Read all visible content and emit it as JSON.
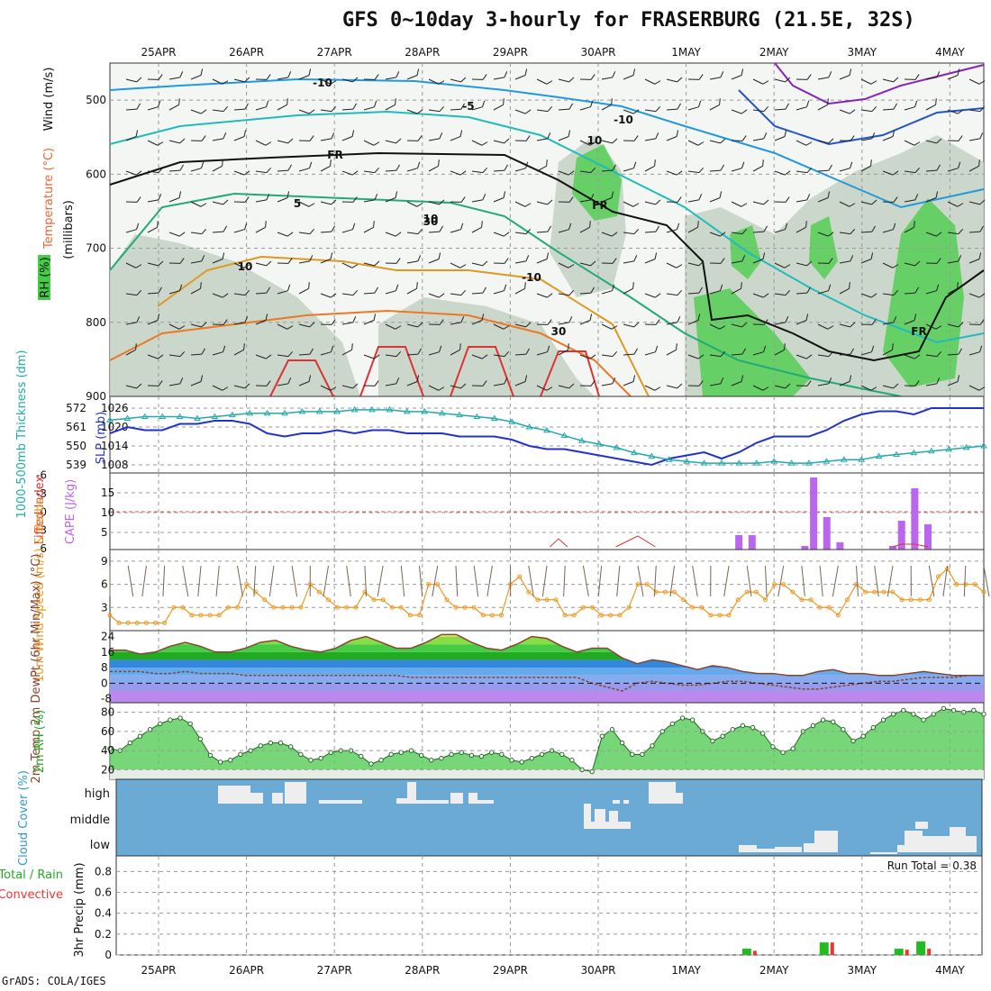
{
  "title": "GFS 0~10day 3-hourly for FRASERBURG (21.5E, 32S)",
  "credit": "GrADS: COLA/IGES",
  "colors": {
    "grid": "#999999",
    "rh_low": "#c8d4c8",
    "rh_mid": "#a8c0a8",
    "rh_high": "#44cc44",
    "rh_max": "#22ee22",
    "slp": "#2233cc",
    "thick": "#22aaaa",
    "cape": "#bb66ee",
    "li": "#dd3333",
    "wind": "#ee9922",
    "temp_fill": "#33aa33",
    "cloud": "#6aaad4",
    "cloud_fill": "#eeeeee",
    "precip_total": "#22bb22",
    "precip_conv": "#ee3333"
  },
  "chart_data": [
    {
      "type": "area",
      "name": "upper-air cross-section",
      "dates": [
        "25APR",
        "26APR",
        "27APR",
        "28APR",
        "29APR",
        "30APR",
        "1MAY",
        "2MAY",
        "3MAY",
        "4MAY"
      ],
      "ylabel": "(millibars)",
      "legend_labels": [
        "Wind (m/s)",
        "Temperature (°C)",
        "RH (%)"
      ],
      "yticks": [
        500,
        600,
        700,
        800,
        900
      ],
      "ylim": [
        900,
        450
      ],
      "contour_labels": [
        "-10",
        "-5",
        "FR",
        "5",
        "10",
        "-10",
        "FR",
        "-10",
        "FR",
        "10",
        "30",
        "10",
        "30"
      ]
    },
    {
      "type": "line",
      "name": "thickness-slp",
      "ylabel_left": "1000-500mb Thickness (dm)",
      "ylabel_right": "SLP (mb)",
      "left_ticks": [
        "572",
        "561",
        "550",
        "539"
      ],
      "right_ticks": [
        "1026",
        "1020",
        "1014",
        "1008"
      ],
      "series": [
        {
          "name": "SLP",
          "values": [
            1018,
            1020,
            1019,
            1019,
            1021,
            1021,
            1022,
            1022,
            1021,
            1018,
            1017,
            1018,
            1018,
            1019,
            1018,
            1019,
            1019,
            1018,
            1018,
            1018,
            1017,
            1017,
            1017,
            1016,
            1014,
            1013,
            1013,
            1012,
            1011,
            1010,
            1009,
            1008,
            1010,
            1011,
            1012,
            1010,
            1012,
            1015,
            1017,
            1017,
            1017,
            1019,
            1022,
            1024,
            1025,
            1025,
            1024,
            1026,
            1026,
            1026,
            1026
          ]
        },
        {
          "name": "Thickness",
          "values": [
            565,
            566,
            567,
            567,
            567,
            566,
            567,
            568,
            569,
            569,
            569,
            570,
            570,
            570,
            571,
            571,
            571,
            570,
            570,
            569,
            568,
            567,
            566,
            564,
            561,
            559,
            556,
            553,
            551,
            549,
            546,
            544,
            542,
            541,
            540,
            540,
            540,
            540,
            541,
            540,
            540,
            541,
            542,
            542,
            544,
            545,
            546,
            547,
            548,
            549,
            550
          ]
        }
      ]
    },
    {
      "type": "bar",
      "name": "cape-li",
      "ylabel_left": "Lifted Index",
      "ylabel_right": "CAPE (J/kg)",
      "left_ticks": [
        "-6",
        "-3",
        "0",
        "3",
        "6"
      ],
      "right_ticks": [
        "15",
        "10",
        "5"
      ],
      "cape": [
        {
          "date_index": 6.6,
          "value": 4
        },
        {
          "date_index": 6.75,
          "value": 4
        },
        {
          "date_index": 7.35,
          "value": 1
        },
        {
          "date_index": 7.45,
          "value": 20
        },
        {
          "date_index": 7.6,
          "value": 9
        },
        {
          "date_index": 7.75,
          "value": 2
        },
        {
          "date_index": 8.35,
          "value": 1
        },
        {
          "date_index": 8.45,
          "value": 8
        },
        {
          "date_index": 8.6,
          "value": 17
        },
        {
          "date_index": 8.75,
          "value": 7
        }
      ],
      "li_segments": [
        {
          "x": [
            4.45,
            4.55,
            4.65
          ],
          "y": [
            5,
            2,
            5
          ]
        },
        {
          "x": [
            5.2,
            5.45,
            5.65
          ],
          "y": [
            5,
            1,
            5
          ]
        },
        {
          "x": [
            8.35,
            8.45,
            8.6,
            8.75
          ],
          "y": [
            5,
            4,
            4,
            5
          ]
        }
      ]
    },
    {
      "type": "line",
      "name": "10m-wind",
      "ylabel": "10m Wind Speed (m/s) & Barbs",
      "yticks": [
        "9",
        "6",
        "3"
      ],
      "ylim": [
        0,
        10.5
      ],
      "values": [
        2,
        1,
        1,
        1,
        1,
        1,
        1,
        3,
        3,
        2,
        2,
        2,
        2,
        3,
        3,
        6,
        5,
        4,
        3,
        3,
        3,
        3,
        6,
        5,
        4,
        3,
        3,
        3,
        5,
        4,
        4,
        3,
        3,
        2,
        2,
        6,
        6,
        4,
        3,
        3,
        3,
        2,
        2,
        2,
        6,
        7,
        5,
        4,
        4,
        4,
        2,
        2,
        3,
        3,
        2,
        2,
        2,
        3,
        6,
        6,
        5,
        5,
        5,
        4,
        3,
        3,
        2,
        2,
        2,
        4,
        5,
        5,
        4,
        6,
        6,
        5,
        4,
        4,
        3,
        3,
        2,
        4,
        6,
        5,
        5,
        5,
        5,
        4,
        4,
        4,
        4,
        7,
        8,
        6,
        6,
        6,
        5
      ]
    },
    {
      "type": "area",
      "name": "2m-temp",
      "ylabel": "2m Temp 2m DewPt (6hr Min/Max) (°C)",
      "yticks": [
        "24",
        "16",
        "8",
        "0",
        "-8"
      ],
      "ylim": [
        -10,
        27
      ],
      "temp": [
        17,
        17,
        15,
        16,
        19,
        21,
        19,
        16,
        16,
        18,
        21,
        22,
        19,
        17,
        16,
        18,
        22,
        24,
        21,
        18,
        18,
        21,
        25,
        25,
        21,
        18,
        17,
        20,
        24,
        23,
        19,
        16,
        18,
        18,
        13,
        10,
        12,
        11,
        9,
        7,
        9,
        8,
        6,
        5,
        5,
        4,
        4,
        6,
        7,
        5,
        5,
        4,
        4,
        5,
        6,
        5,
        4,
        4,
        4
      ],
      "dewpt": [
        6,
        6,
        6,
        5,
        5,
        6,
        5,
        5,
        5,
        4,
        4,
        4,
        4,
        4,
        4,
        4,
        4,
        4,
        4,
        4,
        3,
        3,
        3,
        3,
        3,
        3,
        3,
        3,
        3,
        3,
        3,
        3,
        0,
        -2,
        -4,
        0,
        1,
        0,
        -1,
        -1,
        0,
        1,
        1,
        0,
        -1,
        -2,
        -3,
        -3,
        -2,
        -1,
        0,
        1,
        1,
        2,
        3,
        3,
        3,
        4,
        4
      ]
    },
    {
      "type": "area",
      "name": "2m-rh",
      "ylabel": "2m RH (%)",
      "yticks": [
        "80",
        "60",
        "40",
        "20"
      ],
      "ylim": [
        10,
        90
      ],
      "values": [
        42,
        40,
        48,
        55,
        62,
        68,
        72,
        74,
        68,
        52,
        35,
        28,
        30,
        36,
        40,
        45,
        48,
        48,
        44,
        36,
        30,
        32,
        38,
        40,
        40,
        34,
        26,
        30,
        36,
        38,
        40,
        35,
        30,
        32,
        36,
        38,
        35,
        34,
        38,
        36,
        30,
        28,
        32,
        36,
        40,
        36,
        30,
        20,
        18,
        55,
        62,
        48,
        36,
        36,
        45,
        60,
        68,
        74,
        72,
        60,
        50,
        55,
        62,
        66,
        64,
        58,
        44,
        38,
        42,
        60,
        66,
        72,
        70,
        62,
        50,
        55,
        64,
        72,
        78,
        82,
        78,
        72,
        78,
        84,
        82,
        80,
        82,
        78
      ]
    },
    {
      "type": "bar",
      "name": "cloud-cover",
      "ylabel": "Cloud Cover (%)",
      "levels": [
        "high",
        "middle",
        "low"
      ]
    },
    {
      "type": "bar",
      "name": "precip",
      "ylabel": "3hr Precip (mm)",
      "legend_total": "Total / Rain",
      "legend_conv": "Convective",
      "run_total_label": "Run Total = 0.38",
      "yticks": [
        "0.8",
        "0.6",
        "0.4",
        "0.2",
        "0"
      ],
      "ylim": [
        0,
        0.95
      ],
      "bars": [
        {
          "date_index": 6.72,
          "total": 0.06,
          "conv": 0.04
        },
        {
          "date_index": 7.6,
          "total": 0.12,
          "conv": 0.12
        },
        {
          "date_index": 8.45,
          "total": 0.06,
          "conv": 0.05
        },
        {
          "date_index": 8.7,
          "total": 0.13,
          "conv": 0.06
        }
      ]
    }
  ]
}
